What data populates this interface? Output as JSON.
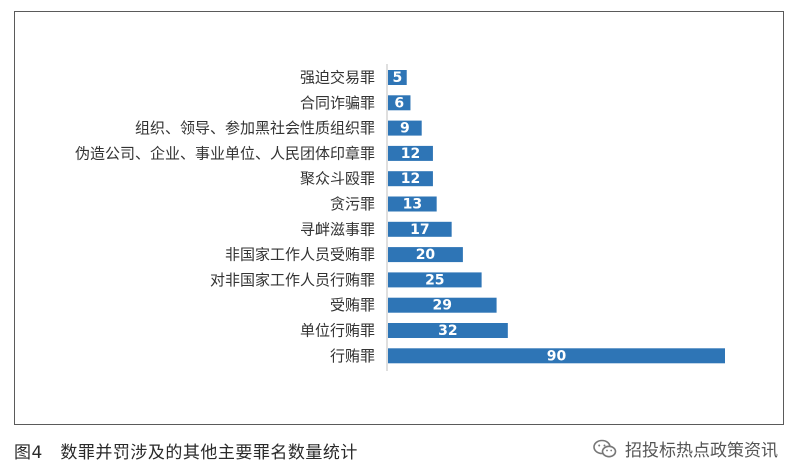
{
  "chart_data": {
    "type": "bar",
    "orientation": "horizontal",
    "categories": [
      "强迫交易罪",
      "合同诈骗罪",
      "组织、领导、参加黑社会性质组织罪",
      "伪造公司、企业、事业单位、人民团体印章罪",
      "聚众斗殴罪",
      "贪污罪",
      "寻衅滋事罪",
      "非国家工作人员受贿罪",
      "对非国家工作人员行贿罪",
      "受贿罪",
      "单位行贿罪",
      "行贿罪"
    ],
    "values": [
      5,
      6,
      9,
      12,
      12,
      13,
      17,
      20,
      25,
      29,
      32,
      90
    ],
    "title": "",
    "xlabel": "",
    "ylabel": "",
    "xlim": [
      0,
      90
    ],
    "grid": false,
    "legend": "none",
    "bar_color": "#2e75b6",
    "label_color": "#ffffff"
  },
  "caption": "图4　数罪并罚涉及的其他主要罪名数量统计",
  "watermark": {
    "text": "招投标热点政策资讯",
    "icon": "wechat-icon"
  }
}
